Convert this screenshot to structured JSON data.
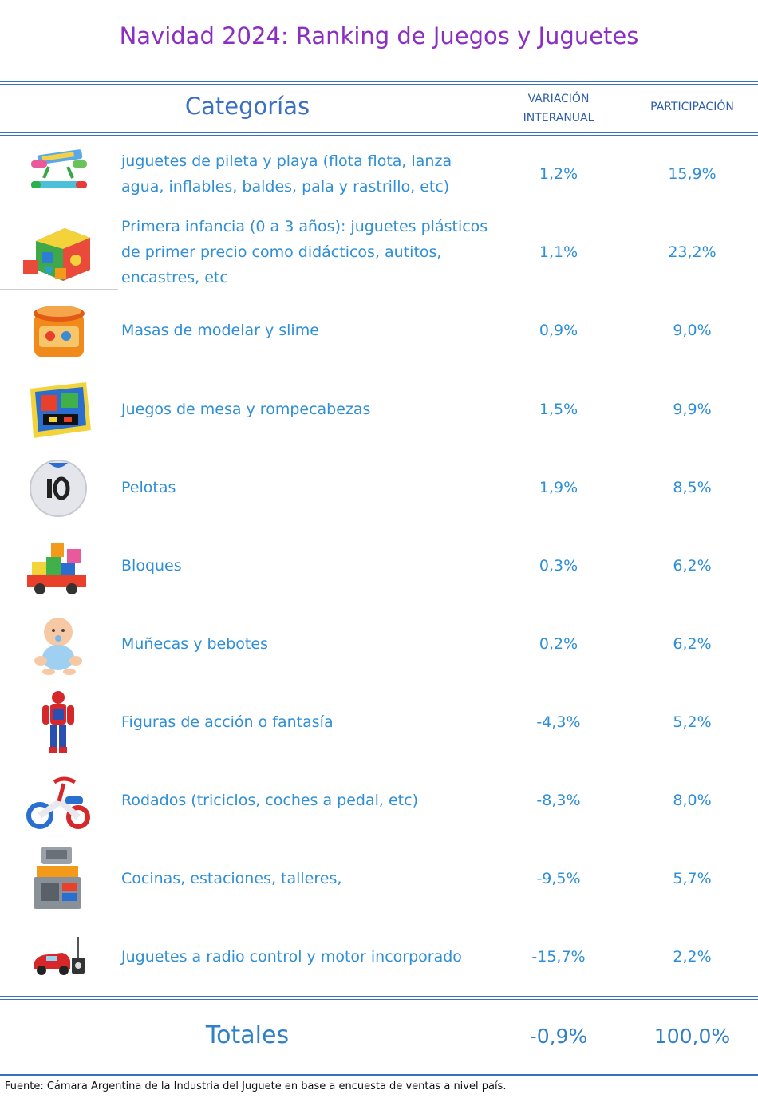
{
  "title": "Navidad 2024: Ranking de Juegos y Juguetes",
  "header": {
    "category": "Categorías",
    "variation_line1": "VARIACIÓN",
    "variation_line2": "INTERANUAL",
    "share": "PARTICIPACIÓN"
  },
  "rows": [
    {
      "label": "juguetes de pileta y playa (flota flota, lanza agua, inflables, baldes, pala y rastrillo, etc)",
      "variation": "1,2%",
      "share": "15,9%",
      "icon": "pool-toy-icon"
    },
    {
      "label": "Primera infancia (0 a 3 años): juguetes plásticos de primer precio como didácticos, autitos, encastres, etc",
      "variation": "1,1%",
      "share": "23,2%",
      "icon": "shape-sorter-icon"
    },
    {
      "label": "Masas de modelar y slime",
      "variation": "0,9%",
      "share": "9,0%",
      "icon": "modeling-dough-icon"
    },
    {
      "label": "Juegos de mesa y rompecabezas",
      "variation": "1,5%",
      "share": "9,9%",
      "icon": "board-game-icon"
    },
    {
      "label": "Pelotas",
      "variation": "1,9%",
      "share": "8,5%",
      "icon": "ball-icon"
    },
    {
      "label": "Bloques",
      "variation": "0,3%",
      "share": "6,2%",
      "icon": "blocks-icon"
    },
    {
      "label": "Muñecas y bebotes",
      "variation": "0,2%",
      "share": "6,2%",
      "icon": "baby-doll-icon"
    },
    {
      "label": "Figuras de acción o fantasía",
      "variation": "-4,3%",
      "share": "5,2%",
      "icon": "action-figure-icon"
    },
    {
      "label": "Rodados (triciclos, coches a pedal, etc)",
      "variation": "-8,3%",
      "share": "8,0%",
      "icon": "tricycle-icon"
    },
    {
      "label": "Cocinas, estaciones, talleres,",
      "variation": "-9,5%",
      "share": "5,7%",
      "icon": "toy-kitchen-icon"
    },
    {
      "label": "Juguetes a radio control y motor incorporado",
      "variation": "-15,7%",
      "share": "2,2%",
      "icon": "rc-car-icon"
    }
  ],
  "totals": {
    "label": "Totales",
    "variation": "-0,9%",
    "share": "100,0%"
  },
  "source": "Fuente: Cámara Argentina de la Industria del Juguete en base a encuesta de ventas a nivel país.",
  "colors": {
    "title": "#8a2fc2",
    "accent": "#3b6fc4",
    "text": "#2f8fd6"
  }
}
